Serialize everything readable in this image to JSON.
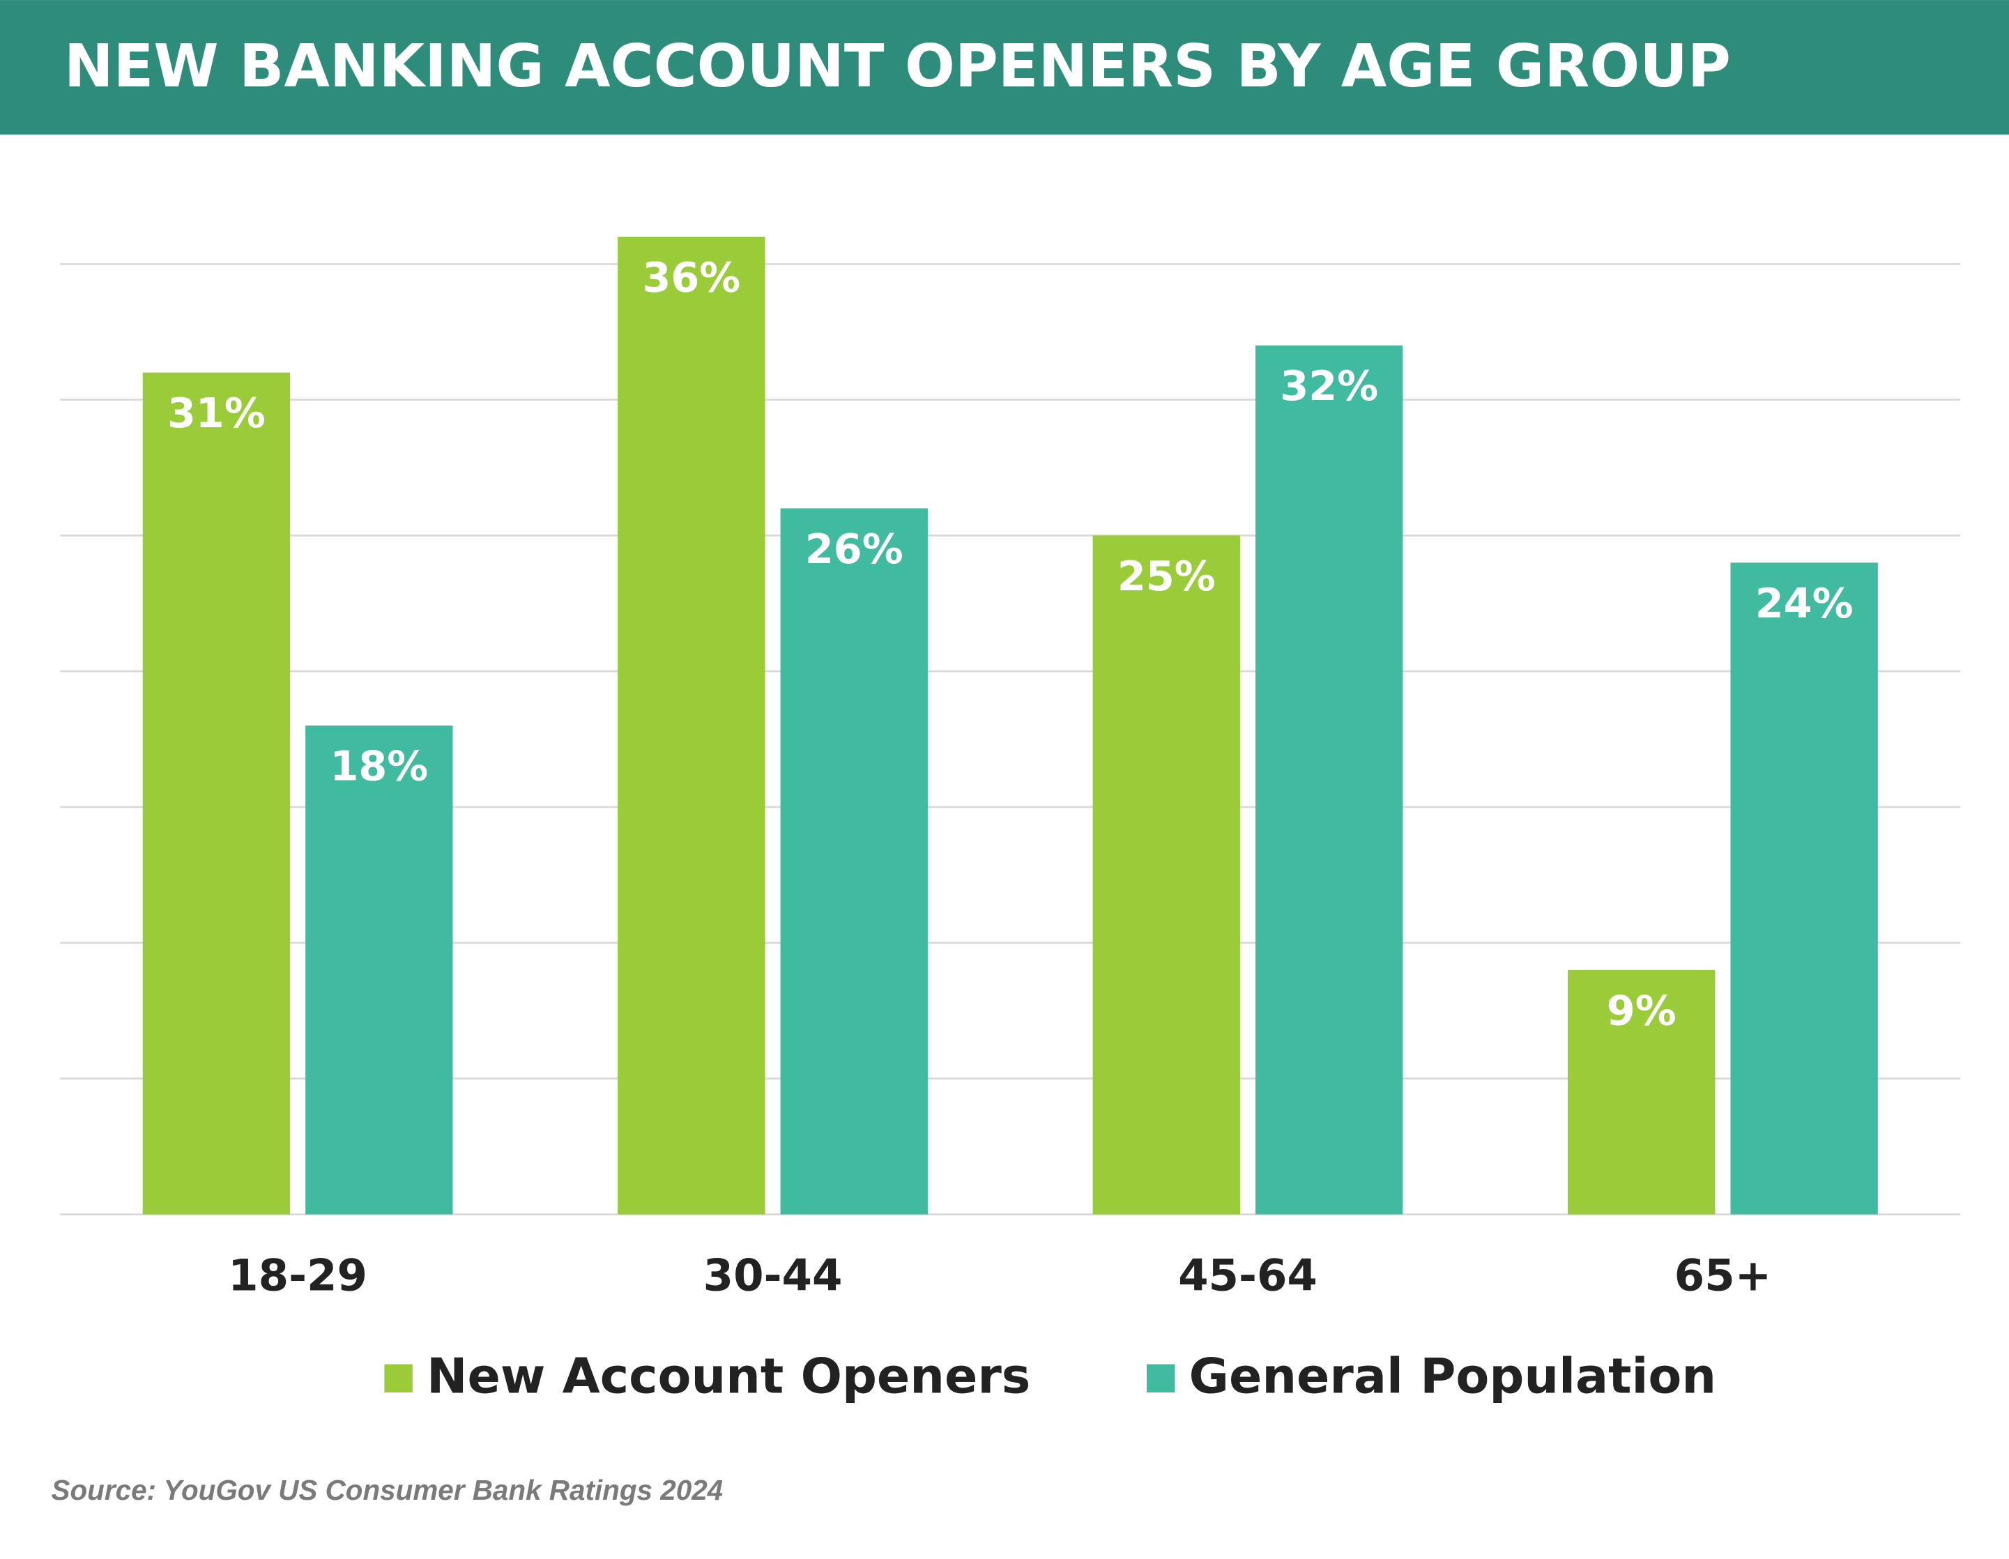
{
  "chart_data": {
    "type": "bar",
    "title": "NEW BANKING ACCOUNT OPENERS BY AGE GROUP",
    "categories": [
      "18-29",
      "30-44",
      "45-64",
      "65+"
    ],
    "series": [
      {
        "name": "New Account Openers",
        "color": "#9acb38",
        "values": [
          31,
          36,
          25,
          9
        ],
        "value_labels": [
          "31%",
          "36%",
          "25%",
          "9%"
        ]
      },
      {
        "name": "General Population",
        "color": "#40bba0",
        "values": [
          18,
          26,
          32,
          24
        ],
        "value_labels": [
          "18%",
          "26%",
          "32%",
          "24%"
        ]
      }
    ],
    "ylim": [
      0,
      35
    ],
    "yticks": [
      0,
      5,
      10,
      15,
      20,
      25,
      30,
      35
    ],
    "grid": true,
    "legend": "bottom",
    "source": "Source: YouGov US Consumer Bank Ratings 2024"
  }
}
